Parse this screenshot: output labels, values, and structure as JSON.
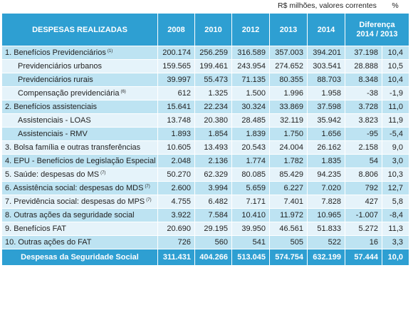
{
  "units_label": "R$ milhões, valores correntes",
  "percent_label": "%",
  "header": {
    "label": "DESPESAS REALIZADAS",
    "years": [
      "2008",
      "2010",
      "2012",
      "2013",
      "2014"
    ],
    "diff": "Diferença 2014 / 2013"
  },
  "rows": [
    {
      "label": "1. Benefícios Previdenciários",
      "note": "(1)",
      "values": [
        "200.174",
        "256.259",
        "316.589",
        "357.003",
        "394.201"
      ],
      "diff": "37.198",
      "pct": "10,4"
    },
    {
      "label": "Previdenciários urbanos",
      "note": "",
      "values": [
        "159.565",
        "199.461",
        "243.954",
        "274.652",
        "303.541"
      ],
      "diff": "28.888",
      "pct": "10,5"
    },
    {
      "label": "Previdenciários rurais",
      "note": "",
      "values": [
        "39.997",
        "55.473",
        "71.135",
        "80.355",
        "88.703"
      ],
      "diff": "8.348",
      "pct": "10,4"
    },
    {
      "label": "Compensação previdenciária",
      "note": "(6)",
      "values": [
        "612",
        "1.325",
        "1.500",
        "1.996",
        "1.958"
      ],
      "diff": "-38",
      "pct": "-1,9"
    },
    {
      "label": "2. Benefícios assistenciais",
      "note": "",
      "values": [
        "15.641",
        "22.234",
        "30.324",
        "33.869",
        "37.598"
      ],
      "diff": "3.728",
      "pct": "11,0"
    },
    {
      "label": "Assistenciais - LOAS",
      "note": "",
      "values": [
        "13.748",
        "20.380",
        "28.485",
        "32.119",
        "35.942"
      ],
      "diff": "3.823",
      "pct": "11,9"
    },
    {
      "label": "Assistenciais - RMV",
      "note": "",
      "values": [
        "1.893",
        "1.854",
        "1.839",
        "1.750",
        "1.656"
      ],
      "diff": "-95",
      "pct": "-5,4"
    },
    {
      "label": "3. Bolsa família e outras transferências",
      "note": "",
      "values": [
        "10.605",
        "13.493",
        "20.543",
        "24.004",
        "26.162"
      ],
      "diff": "2.158",
      "pct": "9,0"
    },
    {
      "label": "4. EPU - Benefícios de Legislação Especial",
      "note": "",
      "values": [
        "2.048",
        "2.136",
        "1.774",
        "1.782",
        "1.835"
      ],
      "diff": "54",
      "pct": "3,0"
    },
    {
      "label": "5. Saúde: despesas do MS",
      "note": "(7)",
      "values": [
        "50.270",
        "62.329",
        "80.085",
        "85.429",
        "94.235"
      ],
      "diff": "8.806",
      "pct": "10,3"
    },
    {
      "label": "6. Assistência social: despesas do MDS",
      "note": "(7)",
      "values": [
        "2.600",
        "3.994",
        "5.659",
        "6.227",
        "7.020"
      ],
      "diff": "792",
      "pct": "12,7"
    },
    {
      "label": "7. Previdência social: despesas do MPS",
      "note": "(7)",
      "values": [
        "4.755",
        "6.482",
        "7.171",
        "7.401",
        "7.828"
      ],
      "diff": "427",
      "pct": "5,8"
    },
    {
      "label": "8. Outras ações da seguridade social",
      "note": "",
      "values": [
        "3.922",
        "7.584",
        "10.410",
        "11.972",
        "10.965"
      ],
      "diff": "-1.007",
      "pct": "-8,4"
    },
    {
      "label": "9. Benefícios FAT",
      "note": "",
      "values": [
        "20.690",
        "29.195",
        "39.950",
        "46.561",
        "51.833"
      ],
      "diff": "5.272",
      "pct": "11,3"
    },
    {
      "label": "10. Outras ações do FAT",
      "note": "",
      "values": [
        "726",
        "560",
        "541",
        "505",
        "522"
      ],
      "diff": "16",
      "pct": "3,3"
    }
  ],
  "total": {
    "label": "Despesas da Seguridade Social",
    "values": [
      "311.431",
      "404.266",
      "513.045",
      "574.754",
      "632.199"
    ],
    "diff": "57.444",
    "pct": "10,0"
  }
}
